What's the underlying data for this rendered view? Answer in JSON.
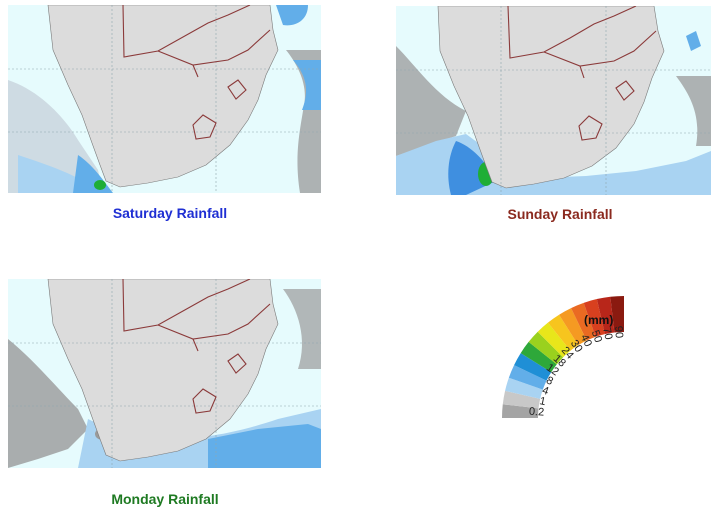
{
  "colors": {
    "ocean": "#e6fbfd",
    "land": "#dcdcdc",
    "border": "#8b3a3a",
    "grid": "#8fa6ad",
    "rain_light_blue": "#9fd0f2",
    "rain_blue": "#3f8fe0",
    "rain_green": "#1fae36",
    "rain_gray": "#9a9a9a"
  },
  "panels": [
    {
      "caption": "Saturday Rainfall",
      "caption_color": "#1f2fd3"
    },
    {
      "caption": "Sunday Rainfall",
      "caption_color": "#8b2a1f"
    },
    {
      "caption": "Monday Rainfall",
      "caption_color": "#1e7a22"
    }
  ],
  "legend": {
    "unit": "(mm)",
    "ticks": [
      "90",
      "70",
      "50",
      "40",
      "30",
      "24",
      "18",
      "12",
      "8",
      "4",
      "1",
      "0.2"
    ],
    "colors": [
      "#8a1a10",
      "#b8261a",
      "#d8401f",
      "#ea6a22",
      "#f59a22",
      "#f7c51e",
      "#e8e61a",
      "#9ad11e",
      "#2ea83a",
      "#1f8fd6",
      "#62aee9",
      "#a9d3f2",
      "#c8c8c8",
      "#a4a4a4"
    ]
  }
}
